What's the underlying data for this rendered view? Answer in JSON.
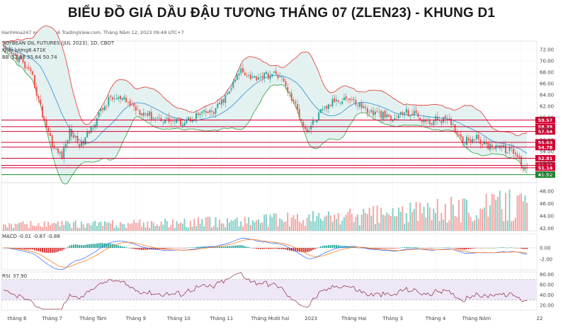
{
  "header": {
    "title": "BIỂU ĐỒ GIÁ DẦU ĐẬU TƯƠNG THÁNG 07 (ZLEN23) - KHUNG D1",
    "credit": "HanhHoa247 xuất bản về TradingView.com, Tháng Năm 12, 2023 09:48 UTC+7"
  },
  "legend": {
    "symbol": "SOYBEAN OIL FUTURES (JUL 2023), 1D, CBOT",
    "volume": "Khối lượng",
    "volume_value": "8.471K",
    "bb_label": "BB",
    "bb_values": "52.88  55.64  50.74",
    "macd_label": "MACD",
    "macd_values": "-0.01  -0.87  -0.88",
    "rsi_label": "RSI",
    "rsi_value": "37.90"
  },
  "colors": {
    "up": "#26a69a",
    "down": "#ef5350",
    "level_red": "#d50032",
    "level_green": "#1b8a2e",
    "band_fill": "#e3f1f0",
    "bb_upper": "#e5342b",
    "bb_basis": "#2b8fd6",
    "bb_lower": "#2f9e3a"
  },
  "chart_data": [
    {
      "type": "candlestick",
      "title": "BIỂU ĐỒ GIÁ DẦU ĐẬU TƯƠNG THÁNG 07 (ZLEN23) - KHUNG D1",
      "ylim": [
        48.5,
        73.5
      ],
      "y_ticks": [
        72.0,
        70.0,
        68.0,
        66.0,
        64.0,
        62.0,
        60.0,
        58.0,
        56.0,
        54.0,
        52.0,
        50.0
      ],
      "x_tick_labels": [
        "tháng 6",
        "Tháng 7",
        "Tháng Tám",
        "Tháng 9",
        "Tháng 10",
        "Tháng 11",
        "Tháng Mười hai",
        "2023",
        "Tháng Hai",
        "Tháng 3",
        "Tháng 4",
        "Tháng Năm",
        "22"
      ],
      "close_anchors": [
        [
          0,
          72.0
        ],
        [
          8,
          70.4
        ],
        [
          15,
          67.0
        ],
        [
          20,
          60.5
        ],
        [
          26,
          54.5
        ],
        [
          30,
          53.2
        ],
        [
          34,
          57.5
        ],
        [
          40,
          55.0
        ],
        [
          48,
          60.0
        ],
        [
          55,
          63.5
        ],
        [
          62,
          63.0
        ],
        [
          70,
          61.2
        ],
        [
          78,
          60.0
        ],
        [
          85,
          59.5
        ],
        [
          92,
          59.2
        ],
        [
          100,
          60.5
        ],
        [
          108,
          61.0
        ],
        [
          115,
          64.0
        ],
        [
          122,
          68.5
        ],
        [
          128,
          67.0
        ],
        [
          135,
          67.5
        ],
        [
          142,
          67.5
        ],
        [
          150,
          62.0
        ],
        [
          156,
          57.5
        ],
        [
          162,
          60.5
        ],
        [
          170,
          63.0
        ],
        [
          176,
          63.5
        ],
        [
          182,
          62.5
        ],
        [
          188,
          61.0
        ],
        [
          194,
          60.5
        ],
        [
          200,
          59.5
        ],
        [
          206,
          61.0
        ],
        [
          212,
          60.5
        ],
        [
          218,
          59.0
        ],
        [
          224,
          59.8
        ],
        [
          230,
          59.0
        ],
        [
          236,
          56.0
        ],
        [
          242,
          56.5
        ],
        [
          248,
          55.0
        ],
        [
          254,
          55.2
        ],
        [
          258,
          54.3
        ],
        [
          262,
          54.0
        ],
        [
          265,
          52.5
        ],
        [
          267,
          51.3
        ],
        [
          269,
          51.6
        ]
      ],
      "price_levels": [
        {
          "value": 59.57,
          "label": "59.57",
          "color": "red"
        },
        {
          "value": 58.39,
          "label": "58.39",
          "color": "red"
        },
        {
          "value": 57.54,
          "label": "57.54",
          "color": "red"
        },
        {
          "value": 55.63,
          "label": "55.63",
          "color": "red"
        },
        {
          "value": 54.78,
          "label": "54.78",
          "color": "red"
        },
        {
          "value": 52.81,
          "label": "52.81",
          "color": "red"
        },
        {
          "value": 51.57,
          "label": "51.57",
          "color": "red"
        },
        {
          "value": 51.14,
          "label": "51.14",
          "color": "red"
        },
        {
          "value": 49.92,
          "label": "49.92",
          "color": "green"
        }
      ],
      "bollinger": {
        "last_basis": 52.88,
        "last_upper": 55.64,
        "last_lower": 50.74
      },
      "last_close": 51.14
    },
    {
      "type": "bar",
      "title": "Khối lượng",
      "y_ticks": [
        "48.00",
        "46.00",
        "44.00",
        "42.00"
      ],
      "last_value": "8.471K"
    },
    {
      "type": "histogram",
      "title": "MACD",
      "y_ticks": [
        "0.00",
        "-2.00"
      ],
      "values": [
        "-0.01",
        "-0.87",
        "-0.88"
      ]
    },
    {
      "type": "line",
      "title": "RSI",
      "y_ticks": [
        "80.00",
        "60.00",
        "40.00",
        "20.00"
      ],
      "band": [
        30,
        70
      ],
      "last_value": "37.90"
    }
  ]
}
